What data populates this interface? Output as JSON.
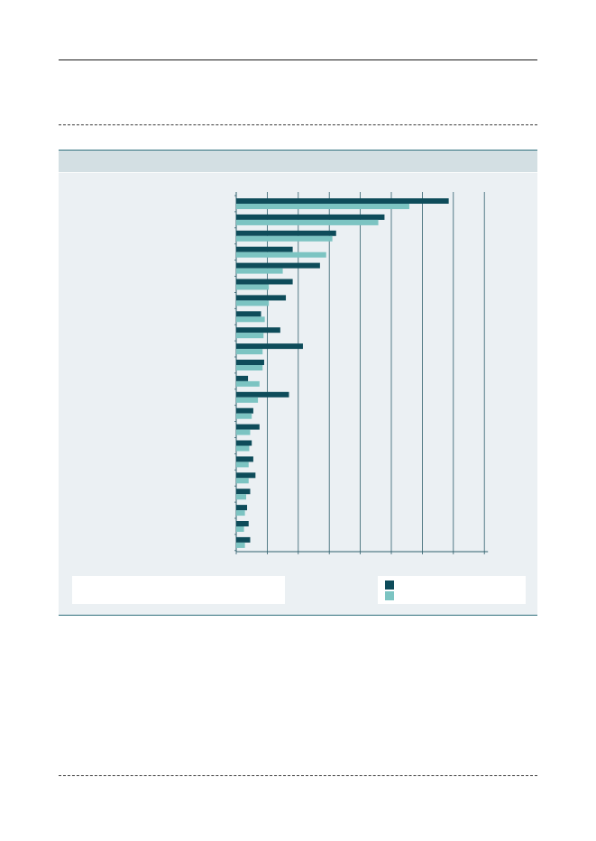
{
  "page": {
    "panel_title": "",
    "note_text": ""
  },
  "colors": {
    "series_1": "#0e4c5a",
    "series_2": "#7cc4c2",
    "panel_header": "#d3dfe3",
    "panel_body": "#ebf0f3",
    "gridline": "#2f5f6c"
  },
  "chart_data": {
    "type": "bar",
    "orientation": "horizontal",
    "title": "",
    "xlabel": "",
    "ylabel": "",
    "categories": [
      "",
      "",
      "",
      "",
      "",
      "",
      "",
      "",
      "",
      "",
      "",
      "",
      "",
      "",
      "",
      "",
      "",
      "",
      "",
      "",
      "",
      ""
    ],
    "xlim": [
      0,
      8
    ],
    "x_gridlines": [
      1,
      2,
      3,
      4,
      5,
      6,
      7,
      8
    ],
    "grid": true,
    "legend_position": "bottom-right",
    "series": [
      {
        "values": [
          6.85,
          4.78,
          3.22,
          1.82,
          2.7,
          1.82,
          1.6,
          0.8,
          1.42,
          2.15,
          0.9,
          0.38,
          1.7,
          0.55,
          0.75,
          0.5,
          0.55,
          0.62,
          0.45,
          0.35,
          0.4,
          0.45
        ]
      },
      {
        "values": [
          5.58,
          4.58,
          3.1,
          2.9,
          1.5,
          1.05,
          1.05,
          0.92,
          0.88,
          0.85,
          0.85,
          0.75,
          0.7,
          0.5,
          0.45,
          0.42,
          0.4,
          0.4,
          0.32,
          0.28,
          0.25,
          0.28
        ]
      }
    ]
  }
}
